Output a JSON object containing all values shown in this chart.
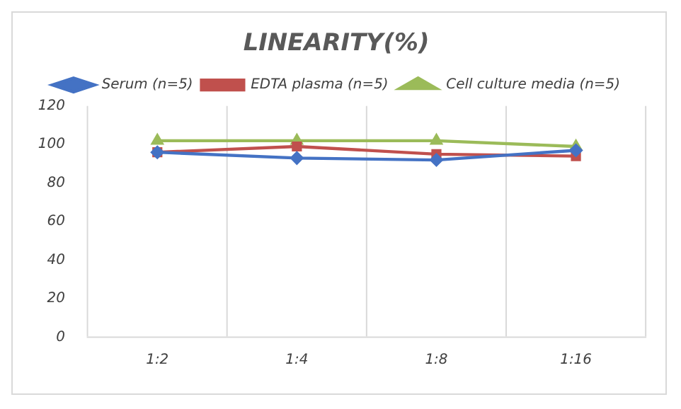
{
  "chart_data": {
    "type": "line",
    "title": "LINEARITY(%)",
    "categories": [
      "1:2",
      "1:4",
      "1:8",
      "1:16"
    ],
    "series": [
      {
        "name": "Serum (n=5)",
        "color": "#4472c4",
        "marker": "diamond",
        "values": [
          96,
          93,
          92,
          97
        ]
      },
      {
        "name": "EDTA plasma (n=5)",
        "color": "#c0504d",
        "marker": "square",
        "values": [
          96,
          99,
          95,
          94
        ]
      },
      {
        "name": "Cell culture media (n=5)",
        "color": "#9bbb59",
        "marker": "triangle",
        "values": [
          102,
          102,
          102,
          99
        ]
      }
    ],
    "ylim": [
      0,
      120
    ],
    "yticks": [
      0,
      20,
      40,
      60,
      80,
      100,
      120
    ],
    "grid": "x",
    "legend": "top"
  }
}
